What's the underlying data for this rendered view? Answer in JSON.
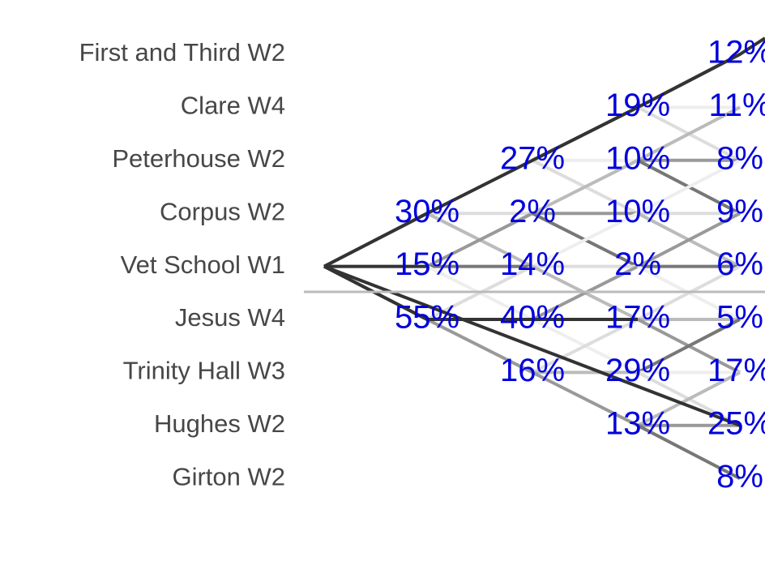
{
  "crews": [
    "First and Third W2",
    "Clare W4",
    "Peterhouse W2",
    "Corpus W2",
    "Vet School W1",
    "Jesus W4",
    "Trinity Hall W3",
    "Hughes W2",
    "Girton W2"
  ],
  "columns": [
    [
      null,
      null,
      null,
      "30%",
      "15%",
      "55%",
      null,
      null,
      null
    ],
    [
      null,
      null,
      "27%",
      "2%",
      "14%",
      "40%",
      "16%",
      null,
      null
    ],
    [
      null,
      "19%",
      "10%",
      "10%",
      "2%",
      "17%",
      "29%",
      "13%",
      null
    ],
    [
      "12%",
      "11%",
      "8%",
      "9%",
      "6%",
      "5%",
      "17%",
      "25%",
      "8%"
    ]
  ]
}
